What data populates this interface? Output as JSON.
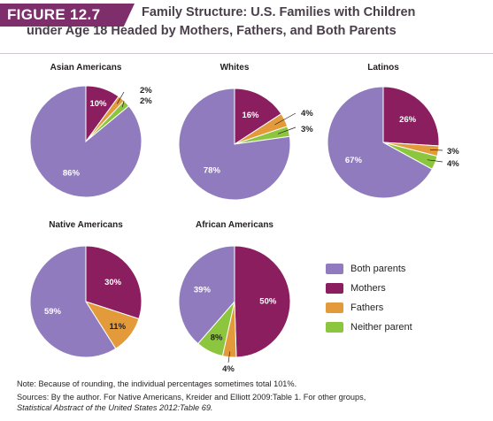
{
  "figure": {
    "badge": "FIGURE 12.7",
    "title_line1": "Family Structure: U.S. Families with Children",
    "title_line2": "under Age 18 Headed by Mothers, Fathers, and Both Parents"
  },
  "colors": {
    "both_parents": "#8f7bbd",
    "mothers": "#8b1e5f",
    "fathers": "#e29a3a",
    "neither_parent": "#8cc63e",
    "badge": "#7d2e6b"
  },
  "legend": {
    "items": [
      {
        "label": "Both parents",
        "color": "#8f7bbd"
      },
      {
        "label": "Mothers",
        "color": "#8b1e5f"
      },
      {
        "label": "Fathers",
        "color": "#e29a3a"
      },
      {
        "label": "Neither parent",
        "color": "#8cc63e"
      }
    ]
  },
  "chart_data": [
    {
      "type": "pie",
      "title": "Asian Americans",
      "categories": [
        "Both parents",
        "Mothers",
        "Fathers",
        "Neither parent"
      ],
      "values": [
        86,
        10,
        2,
        2
      ],
      "labels": [
        "86%",
        "10%",
        "2%",
        "2%"
      ]
    },
    {
      "type": "pie",
      "title": "Whites",
      "categories": [
        "Both parents",
        "Mothers",
        "Fathers",
        "Neither parent"
      ],
      "values": [
        78,
        16,
        4,
        3
      ],
      "labels": [
        "78%",
        "16%",
        "4%",
        "3%"
      ]
    },
    {
      "type": "pie",
      "title": "Latinos",
      "categories": [
        "Both parents",
        "Mothers",
        "Fathers",
        "Neither parent"
      ],
      "values": [
        67,
        26,
        3,
        4
      ],
      "labels": [
        "67%",
        "26%",
        "3%",
        "4%"
      ]
    },
    {
      "type": "pie",
      "title": "Native Americans",
      "categories": [
        "Both parents",
        "Mothers",
        "Fathers",
        "Neither parent"
      ],
      "values": [
        59,
        30,
        11,
        0
      ],
      "labels": [
        "59%",
        "30%",
        "11%",
        ""
      ]
    },
    {
      "type": "pie",
      "title": "African Americans",
      "categories": [
        "Both parents",
        "Mothers",
        "Fathers",
        "Neither parent"
      ],
      "values": [
        39,
        50,
        4,
        8
      ],
      "labels": [
        "39%",
        "50%",
        "4%",
        "8%"
      ]
    }
  ],
  "notes": {
    "note": "Note: Because of rounding, the individual percentages sometimes total 101%.",
    "sources_line1": "Sources: By the author. For Native Americans, Kreider and Elliott 2009:Table 1. For other groups,",
    "sources_line2": "Statistical Abstract of the United States 2012:Table 69."
  }
}
